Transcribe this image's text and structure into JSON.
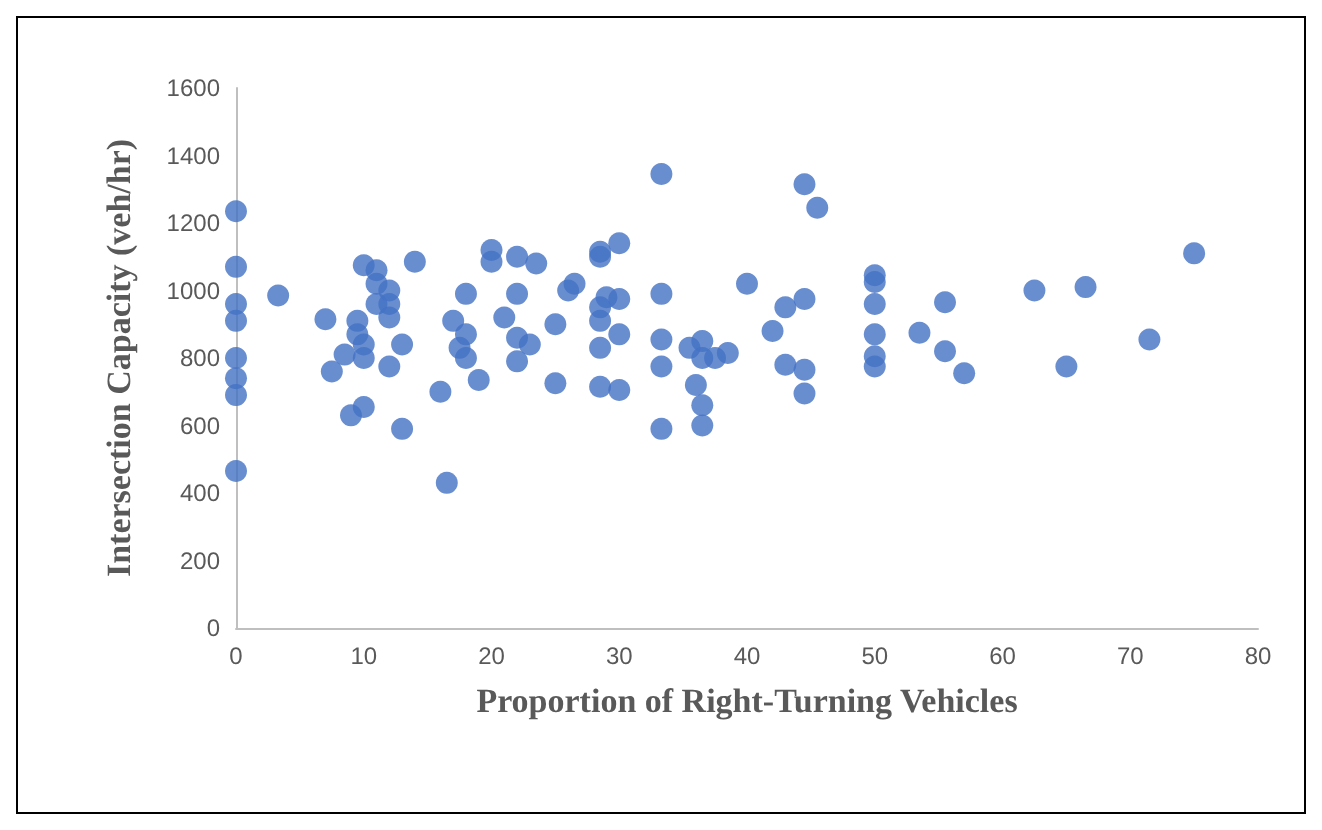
{
  "chart_data": {
    "type": "scatter",
    "xlabel": "Proportion of Right-Turning Vehicles",
    "ylabel": "Intersection Capacity (veh/hr)",
    "x": [
      0,
      0,
      0,
      0,
      0,
      0,
      0,
      0,
      3.3,
      7,
      7.5,
      8.5,
      9,
      9.5,
      9.5,
      10,
      10,
      10,
      10,
      11,
      11,
      11,
      12,
      12,
      12,
      12,
      13,
      13,
      14,
      16,
      16.5,
      17,
      17.5,
      18,
      18,
      18,
      19,
      20,
      20,
      21,
      22,
      22,
      22,
      22,
      23,
      23.5,
      25,
      25,
      26,
      26.5,
      28.5,
      28.5,
      28.5,
      28.5,
      28.5,
      28.5,
      29,
      30,
      30,
      30,
      30,
      33.3,
      33.3,
      33.3,
      33.3,
      33.3,
      35.5,
      36,
      36.5,
      36.5,
      36.5,
      36.5,
      37.5,
      38.5,
      40,
      42,
      43,
      43,
      44.5,
      44.5,
      44.5,
      44.5,
      45.5,
      50,
      50,
      50,
      50,
      50,
      50,
      53.5,
      55.5,
      55.5,
      57,
      62.5,
      65,
      66.5,
      71.5,
      75
    ],
    "values": [
      1235,
      1070,
      960,
      910,
      800,
      740,
      690,
      465,
      985,
      915,
      760,
      810,
      630,
      870,
      910,
      655,
      800,
      840,
      1075,
      960,
      1020,
      1060,
      775,
      920,
      960,
      1000,
      840,
      590,
      1085,
      700,
      430,
      910,
      830,
      990,
      870,
      800,
      735,
      1120,
      1085,
      920,
      1100,
      990,
      860,
      790,
      840,
      1080,
      900,
      725,
      1000,
      1020,
      1100,
      1115,
      950,
      910,
      830,
      715,
      980,
      1140,
      975,
      870,
      705,
      1345,
      990,
      855,
      775,
      590,
      830,
      720,
      850,
      800,
      660,
      600,
      800,
      815,
      1020,
      880,
      950,
      780,
      1315,
      975,
      765,
      695,
      1245,
      1045,
      1025,
      960,
      870,
      805,
      775,
      875,
      965,
      820,
      755,
      1000,
      775,
      1010,
      855,
      1110
    ],
    "color": "#4472c4",
    "marker": "circle",
    "xlim": [
      0,
      80
    ],
    "xticks": [
      0,
      10,
      20,
      30,
      40,
      50,
      60,
      70,
      80
    ],
    "ylim": [
      0,
      1600
    ],
    "yticks": [
      0,
      200,
      400,
      600,
      800,
      1000,
      1200,
      1400,
      1600
    ],
    "grid": false
  }
}
